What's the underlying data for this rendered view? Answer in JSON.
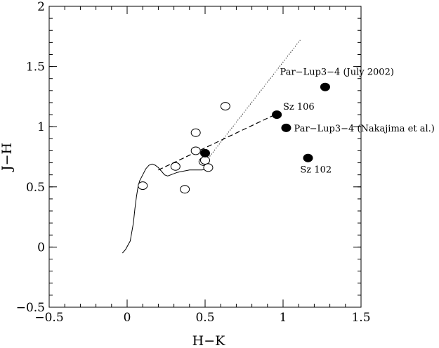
{
  "chart_data": {
    "type": "scatter",
    "title": "",
    "xlabel": "H−K",
    "ylabel": "J−H",
    "xlim": [
      -0.5,
      1.5
    ],
    "ylim": [
      -0.5,
      2
    ],
    "xticks": [
      -0.5,
      0,
      0.5,
      1,
      1.5
    ],
    "yticks": [
      -0.5,
      0,
      0.5,
      1,
      1.5,
      2
    ],
    "xtick_labels": [
      "−0.5",
      "0",
      "0.5",
      "1",
      "1.5"
    ],
    "ytick_labels": [
      "−0.5",
      "0",
      "0.5",
      "1",
      "1.5",
      "2"
    ],
    "x_minor_step": 0.1,
    "y_minor_step": 0.1,
    "grid": false,
    "series": [
      {
        "marker": "open-circle",
        "x": [
          0.1,
          0.31,
          0.37,
          0.44,
          0.44,
          0.49,
          0.5,
          0.52,
          0.63
        ],
        "y": [
          0.51,
          0.67,
          0.48,
          0.8,
          0.95,
          0.71,
          0.72,
          0.66,
          1.17
        ]
      },
      {
        "marker": "filled-circle",
        "x": [
          0.5,
          0.96,
          1.02,
          1.16,
          1.27
        ],
        "y": [
          0.78,
          1.1,
          0.99,
          0.74,
          1.33
        ]
      }
    ],
    "lines": [
      {
        "style": "solid",
        "x": [
          -0.03,
          -0.01,
          0.02,
          0.04,
          0.05,
          0.06,
          0.07,
          0.08,
          0.1,
          0.12,
          0.14,
          0.16,
          0.18,
          0.2,
          0.22,
          0.24,
          0.26,
          0.28,
          0.32,
          0.36,
          0.4,
          0.44,
          0.48,
          0.52
        ],
        "y": [
          -0.05,
          -0.02,
          0.05,
          0.2,
          0.32,
          0.42,
          0.5,
          0.55,
          0.6,
          0.65,
          0.68,
          0.69,
          0.68,
          0.66,
          0.63,
          0.6,
          0.59,
          0.6,
          0.62,
          0.63,
          0.64,
          0.64,
          0.64,
          0.65
        ]
      },
      {
        "style": "dotted",
        "x": [
          0.51,
          1.11
        ],
        "y": [
          0.72,
          1.72
        ]
      },
      {
        "style": "dashed",
        "x": [
          0.2,
          0.98
        ],
        "y": [
          0.64,
          1.12
        ]
      }
    ],
    "annotations": [
      {
        "text": "Par−Lup3−4 (July 2002)",
        "x": 0.98,
        "y": 1.43
      },
      {
        "text": "Sz 106",
        "x": 1.0,
        "y": 1.14
      },
      {
        "text": "Par−Lup3−4 (Nakajima et al.)",
        "x": 1.07,
        "y": 0.96
      },
      {
        "text": "Sz 102",
        "x": 1.11,
        "y": 0.62
      }
    ]
  }
}
